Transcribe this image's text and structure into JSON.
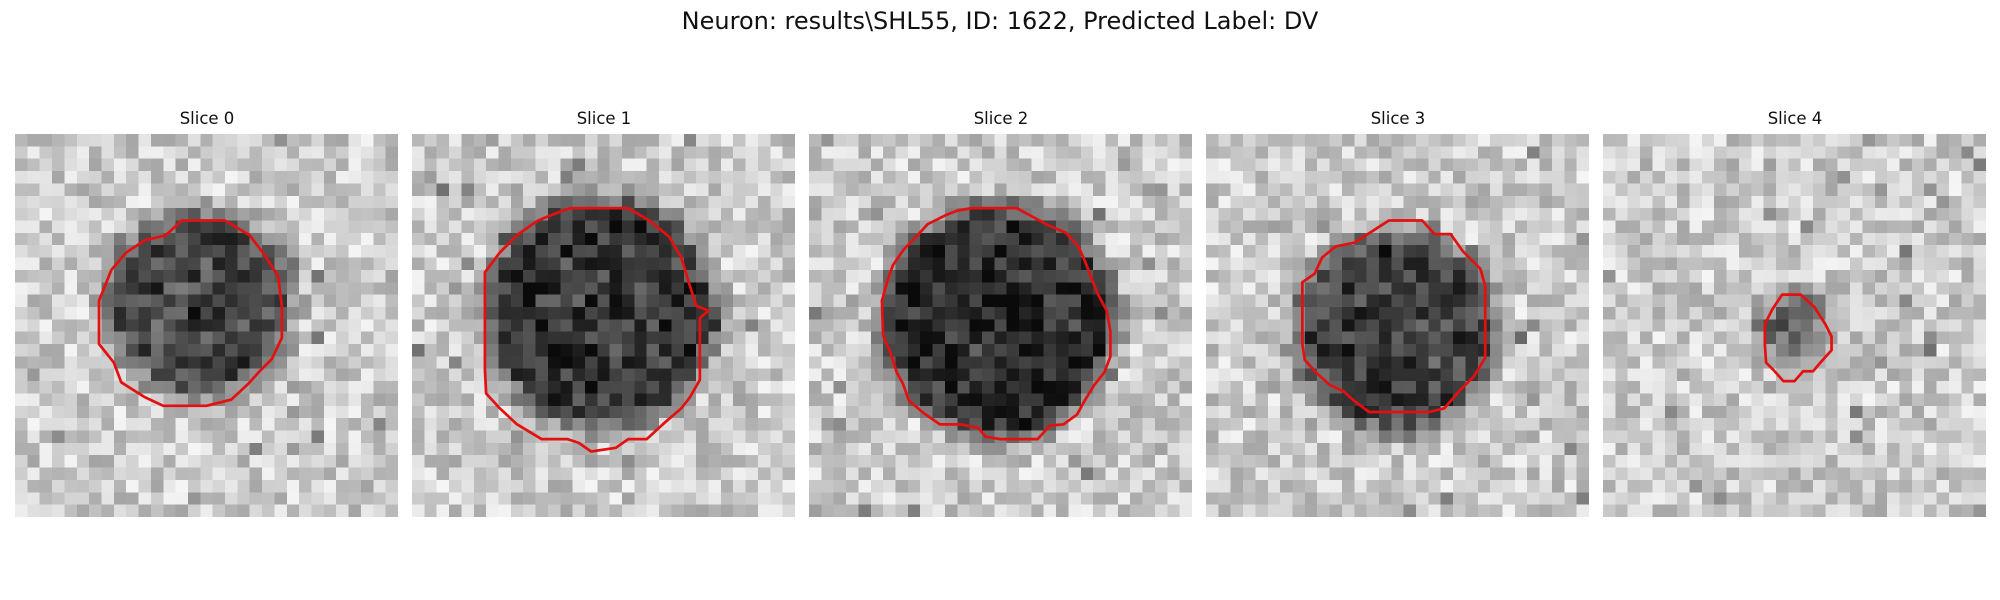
{
  "figure": {
    "title": "Neuron: results\\SHL55, ID: 1622, Predicted Label: DV",
    "colormap": "gray",
    "contour_color": "#e41010",
    "image_grid": 31
  },
  "slices": [
    {
      "title": "Slice 0",
      "blob": {
        "cx": 14.9,
        "cy": 13.8,
        "r": 7.4,
        "depth": 0.5
      },
      "seed": 11,
      "contour": [
        [
          14.5,
          7
        ],
        [
          17,
          7
        ],
        [
          19,
          8.2
        ],
        [
          20.2,
          9.8
        ],
        [
          21.3,
          11.5
        ],
        [
          21.6,
          14
        ],
        [
          21.6,
          16.5
        ],
        [
          20.8,
          18.2
        ],
        [
          19.8,
          19.2
        ],
        [
          18.9,
          20.2
        ],
        [
          17.5,
          21.5
        ],
        [
          15.5,
          22
        ],
        [
          12,
          22
        ],
        [
          10.5,
          21.3
        ],
        [
          8.6,
          20.1
        ],
        [
          8,
          18.5
        ],
        [
          6.8,
          17
        ],
        [
          6.8,
          13.5
        ],
        [
          7.8,
          11
        ],
        [
          9,
          9.6
        ],
        [
          10.5,
          8.6
        ],
        [
          12.2,
          8.2
        ],
        [
          13.5,
          7
        ]
      ]
    },
    {
      "title": "Slice 1",
      "blob": {
        "cx": 15.3,
        "cy": 14.5,
        "r": 9.2,
        "depth": 0.58
      },
      "seed": 23,
      "contour": [
        [
          13.8,
          6
        ],
        [
          17.5,
          6
        ],
        [
          19.2,
          7
        ],
        [
          20.8,
          8.3
        ],
        [
          21.8,
          10
        ],
        [
          22.4,
          12
        ],
        [
          23,
          13.9
        ],
        [
          24,
          14.3
        ],
        [
          23.3,
          14.9
        ],
        [
          23.3,
          17
        ],
        [
          23.3,
          19.9
        ],
        [
          22.5,
          21.3
        ],
        [
          21.8,
          22.2
        ],
        [
          20.3,
          23.5
        ],
        [
          19,
          24.7
        ],
        [
          17.5,
          24.7
        ],
        [
          16.5,
          25.4
        ],
        [
          14.5,
          25.7
        ],
        [
          13.5,
          25
        ],
        [
          12.6,
          24.7
        ],
        [
          10.5,
          24.7
        ],
        [
          8.5,
          23.5
        ],
        [
          7.1,
          22.2
        ],
        [
          6,
          21
        ],
        [
          5.9,
          19
        ],
        [
          5.9,
          14
        ],
        [
          5.9,
          11.2
        ],
        [
          7.1,
          9.6
        ],
        [
          8.6,
          8.1
        ],
        [
          10.2,
          7
        ],
        [
          11.7,
          6.4
        ],
        [
          12.8,
          6
        ]
      ]
    },
    {
      "title": "Slice 2",
      "blob": {
        "cx": 15.3,
        "cy": 15.1,
        "r": 9.3,
        "depth": 0.62
      },
      "seed": 37,
      "contour": [
        [
          13.2,
          6
        ],
        [
          16.8,
          6
        ],
        [
          18.1,
          6.7
        ],
        [
          19.4,
          7.4
        ],
        [
          20.8,
          8
        ],
        [
          21.8,
          9.1
        ],
        [
          22.3,
          10.2
        ],
        [
          22.8,
          11.5
        ],
        [
          23.4,
          13
        ],
        [
          24.1,
          14.3
        ],
        [
          24.4,
          16
        ],
        [
          24.4,
          18
        ],
        [
          23.9,
          19.3
        ],
        [
          23.1,
          20.3
        ],
        [
          22.3,
          21.6
        ],
        [
          21.7,
          22.7
        ],
        [
          20.6,
          23.5
        ],
        [
          19.5,
          23.6
        ],
        [
          18.5,
          24.7
        ],
        [
          17.3,
          24.7
        ],
        [
          15.5,
          24.7
        ],
        [
          14.3,
          24.5
        ],
        [
          13.7,
          23.8
        ],
        [
          12.3,
          23.5
        ],
        [
          10.6,
          23.5
        ],
        [
          9.3,
          22.6
        ],
        [
          8.1,
          21.6
        ],
        [
          7.6,
          20.2
        ],
        [
          7.1,
          19.3
        ],
        [
          6.6,
          17.7
        ],
        [
          6,
          16.3
        ],
        [
          5.9,
          13.5
        ],
        [
          6.4,
          11.7
        ],
        [
          6.8,
          10.6
        ],
        [
          7.7,
          9.3
        ],
        [
          8.6,
          8.4
        ],
        [
          9.6,
          7.3
        ],
        [
          11,
          6.6
        ],
        [
          12,
          6.2
        ]
      ]
    },
    {
      "title": "Slice 3",
      "blob": {
        "cx": 15.3,
        "cy": 16.0,
        "r": 8.0,
        "depth": 0.55
      },
      "seed": 53,
      "contour": [
        [
          14.8,
          7
        ],
        [
          17.5,
          7
        ],
        [
          18.5,
          8.1
        ],
        [
          19.8,
          8.1
        ],
        [
          20.8,
          9.5
        ],
        [
          22.2,
          10.9
        ],
        [
          22.6,
          12.3
        ],
        [
          22.6,
          14.5
        ],
        [
          22.6,
          18.1
        ],
        [
          21.7,
          19.6
        ],
        [
          20.5,
          20.8
        ],
        [
          19.3,
          22.2
        ],
        [
          18.1,
          22.5
        ],
        [
          15.5,
          22.5
        ],
        [
          13.2,
          22.5
        ],
        [
          12,
          21.6
        ],
        [
          11.1,
          20.8
        ],
        [
          10,
          20.3
        ],
        [
          8.9,
          19.3
        ],
        [
          8,
          18.3
        ],
        [
          7.8,
          17
        ],
        [
          7.8,
          14
        ],
        [
          7.8,
          12
        ],
        [
          8.8,
          11.3
        ],
        [
          9.4,
          10
        ],
        [
          10.5,
          9.1
        ],
        [
          12,
          8.8
        ],
        [
          13.1,
          8.1
        ]
      ]
    },
    {
      "title": "Slice 4",
      "blob": {
        "cx": 15.5,
        "cy": 15.8,
        "r": 3.0,
        "depth": 0.35
      },
      "seed": 71,
      "contour": [
        [
          14.5,
          13
        ],
        [
          16,
          13
        ],
        [
          17.1,
          14
        ],
        [
          18,
          15.4
        ],
        [
          18.5,
          16.4
        ],
        [
          18.5,
          17.5
        ],
        [
          17.6,
          18.5
        ],
        [
          17,
          19.2
        ],
        [
          16.2,
          19.2
        ],
        [
          15.5,
          20
        ],
        [
          14.6,
          20
        ],
        [
          13.8,
          19.1
        ],
        [
          13.2,
          18.5
        ],
        [
          13.1,
          17
        ],
        [
          13.1,
          15.4
        ],
        [
          13.7,
          14.2
        ]
      ]
    }
  ]
}
